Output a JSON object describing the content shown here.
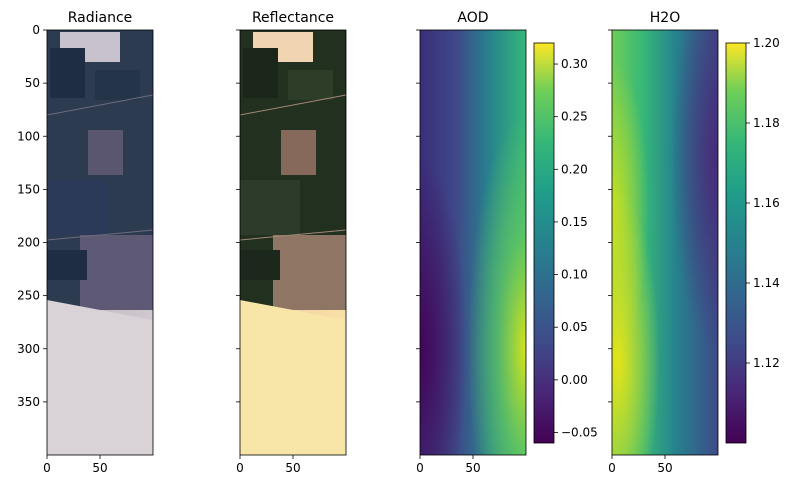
{
  "chart_data": [
    {
      "type": "image",
      "title": "Radiance",
      "xlim": [
        0,
        100
      ],
      "ylim": [
        400,
        0
      ],
      "xticks": [
        0,
        50
      ],
      "yticks": [
        0,
        50,
        100,
        150,
        200,
        250,
        300,
        350
      ],
      "show_ytick_labels": true,
      "palette": [
        "#2b3a4e",
        "#1f3047",
        "#4a4f63",
        "#5a5870",
        "#c9c4cf",
        "#e2d9d6"
      ]
    },
    {
      "type": "image",
      "title": "Reflectance",
      "xlim": [
        0,
        100
      ],
      "ylim": [
        400,
        0
      ],
      "xticks": [
        0,
        50
      ],
      "yticks": [
        0,
        50,
        100,
        150,
        200,
        250,
        300,
        350
      ],
      "show_ytick_labels": false,
      "palette": [
        "#1e2a20",
        "#2a3a26",
        "#7a6150",
        "#8c7262",
        "#f2d8b4",
        "#fbf0b0"
      ]
    },
    {
      "type": "heatmap",
      "title": "AOD",
      "colormap": "viridis",
      "xlim": [
        0,
        100
      ],
      "ylim": [
        400,
        0
      ],
      "xticks": [
        0,
        50
      ],
      "yticks": [
        0,
        50,
        100,
        150,
        200,
        250,
        300,
        350
      ],
      "show_ytick_labels": false,
      "clim": [
        -0.06,
        0.32
      ],
      "colorbar_ticks": [
        0.3,
        0.25,
        0.2,
        0.15,
        0.1,
        0.05,
        0.0,
        -0.05
      ],
      "colorbar_labels": [
        "0.30",
        "0.25",
        "0.20",
        "0.15",
        "0.10",
        "0.05",
        "0.00",
        "−0.05"
      ],
      "trend": "increases from left to right; highest along right edge near rows 250–330"
    },
    {
      "type": "heatmap",
      "title": "H2O",
      "colormap": "viridis",
      "xlim": [
        0,
        100
      ],
      "ylim": [
        400,
        0
      ],
      "xticks": [
        0,
        50
      ],
      "yticks": [
        0,
        50,
        100,
        150,
        200,
        250,
        300,
        350
      ],
      "show_ytick_labels": false,
      "clim": [
        1.1,
        1.2
      ],
      "colorbar_ticks": [
        1.2,
        1.18,
        1.16,
        1.14,
        1.12
      ],
      "colorbar_labels": [
        "1.20",
        "1.18",
        "1.16",
        "1.14",
        "1.12"
      ],
      "trend": "decreases from left to right; highest along left edge near rows 150–180 and 280–330"
    }
  ]
}
